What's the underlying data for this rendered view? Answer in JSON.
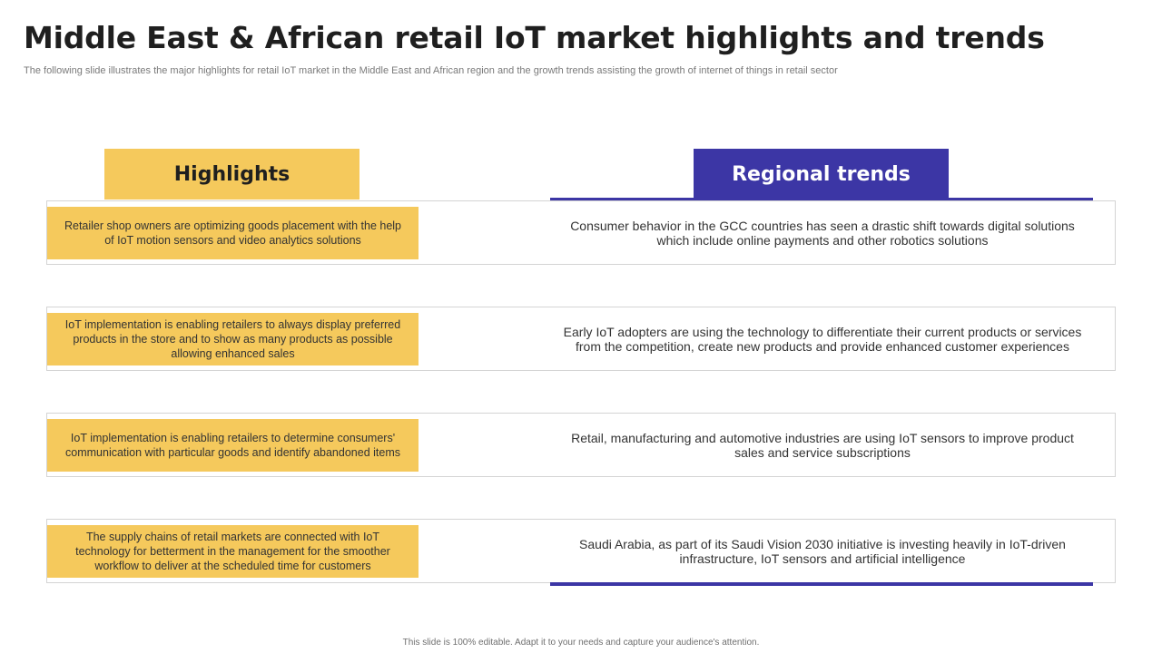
{
  "slide": {
    "title": "Middle East & African retail IoT market highlights and trends",
    "subtitle": "The following slide illustrates the major highlights for retail IoT market in the Middle East and African region and the growth trends assisting the growth of internet of things in retail sector",
    "footer": "This slide is 100% editable. Adapt it to your needs and capture your audience's attention."
  },
  "columns": {
    "highlights_label": "Highlights",
    "regional_label": "Regional trends"
  },
  "rows": [
    {
      "highlight": "Retailer shop owners are optimizing goods placement with the help of IoT motion sensors and video analytics solutions",
      "trend": "Consumer behavior in the GCC countries has seen a drastic shift towards digital solutions which include online payments and other robotics solutions"
    },
    {
      "highlight": "IoT implementation is enabling retailers to always display preferred products in the store and to show as many products as possible allowing enhanced sales",
      "trend": "Early IoT adopters are using the technology to differentiate their current products or services from the competition, create new products and provide enhanced customer experiences"
    },
    {
      "highlight": "IoT implementation is enabling retailers to determine consumers' communication with particular goods and identify abandoned items",
      "trend": "Retail, manufacturing and automotive industries are using IoT sensors to improve product sales and service subscriptions"
    },
    {
      "highlight": "The supply chains of retail markets are connected with IoT technology for betterment in the management for the smoother workflow to deliver at the scheduled time for customers",
      "trend": "Saudi Arabia, as part of its Saudi Vision 2030 initiative is investing heavily in IoT-driven infrastructure, IoT sensors and artificial intelligence"
    }
  ],
  "colors": {
    "highlight_yellow": "#f5c95c",
    "accent_indigo": "#3c36a5",
    "title_text": "#1f1f1f",
    "row_border": "#d4d4d4"
  }
}
